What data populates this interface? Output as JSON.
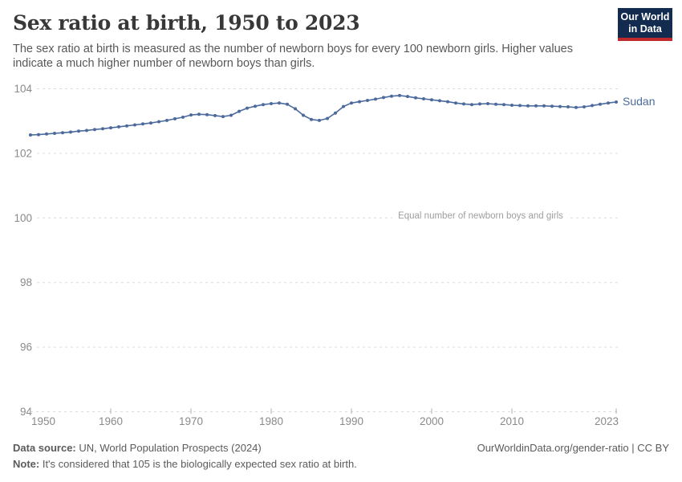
{
  "header": {
    "title": "Sex ratio at birth, 1950 to 2023",
    "subtitle": "The sex ratio at birth is measured as the number of newborn boys for every 100 newborn girls. Higher values indicate a much higher number of newborn boys than girls.",
    "logo": {
      "line1": "Our World",
      "line2": "in Data"
    }
  },
  "chart_data": {
    "type": "line",
    "title": "Sex ratio at birth, 1950 to 2023",
    "xlabel": "",
    "ylabel": "",
    "xlim": [
      1950,
      2023
    ],
    "ylim": [
      94,
      104
    ],
    "x_ticks": [
      1950,
      1960,
      1970,
      1980,
      1990,
      2000,
      2010,
      2023
    ],
    "y_ticks": [
      104,
      102,
      100,
      98,
      96,
      94
    ],
    "grid": "horizontal-dashed",
    "legend_position": "end-of-line-label",
    "annotation": {
      "text": "Equal number of newborn boys and girls",
      "y": 100
    },
    "x": [
      1950,
      1951,
      1952,
      1953,
      1954,
      1955,
      1956,
      1957,
      1958,
      1959,
      1960,
      1961,
      1962,
      1963,
      1964,
      1965,
      1966,
      1967,
      1968,
      1969,
      1970,
      1971,
      1972,
      1973,
      1974,
      1975,
      1976,
      1977,
      1978,
      1979,
      1980,
      1981,
      1982,
      1983,
      1984,
      1985,
      1986,
      1987,
      1988,
      1989,
      1990,
      1991,
      1992,
      1993,
      1994,
      1995,
      1996,
      1997,
      1998,
      1999,
      2000,
      2001,
      2002,
      2003,
      2004,
      2005,
      2006,
      2007,
      2008,
      2009,
      2010,
      2011,
      2012,
      2013,
      2014,
      2015,
      2016,
      2017,
      2018,
      2019,
      2020,
      2021,
      2022,
      2023
    ],
    "series": [
      {
        "name": "Sudan",
        "color": "#4c6a9c",
        "values": [
          102.57,
          102.58,
          102.6,
          102.62,
          102.64,
          102.66,
          102.69,
          102.71,
          102.74,
          102.76,
          102.79,
          102.82,
          102.85,
          102.88,
          102.91,
          102.94,
          102.98,
          103.02,
          103.07,
          103.12,
          103.19,
          103.21,
          103.2,
          103.17,
          103.14,
          103.18,
          103.3,
          103.4,
          103.46,
          103.51,
          103.54,
          103.56,
          103.52,
          103.38,
          103.18,
          103.05,
          103.02,
          103.08,
          103.25,
          103.45,
          103.56,
          103.6,
          103.64,
          103.68,
          103.73,
          103.77,
          103.79,
          103.76,
          103.72,
          103.69,
          103.66,
          103.63,
          103.6,
          103.56,
          103.53,
          103.51,
          103.53,
          103.54,
          103.52,
          103.51,
          103.49,
          103.48,
          103.47,
          103.47,
          103.47,
          103.46,
          103.45,
          103.44,
          103.42,
          103.44,
          103.48,
          103.52,
          103.56,
          103.59
        ]
      }
    ]
  },
  "footer": {
    "data_source_label": "Data source:",
    "data_source_text": " UN, World Population Prospects (2024)",
    "note_label": "Note:",
    "note_text": " It's considered that 105 is the biologically expected sex ratio at birth.",
    "link": "OurWorldinData.org/gender-ratio | CC BY"
  },
  "colors": {
    "line": "#4c6a9c",
    "gridline": "#dcdcdc",
    "axis_label": "#8a8a8a",
    "tick_mark": "#b0b0b0",
    "title": "#383838",
    "subtitle": "#585858",
    "footer": "#5b5b5b",
    "annotation": "#9e9e9e",
    "logo_bg": "#132b4e",
    "logo_bar": "#c0292b"
  }
}
